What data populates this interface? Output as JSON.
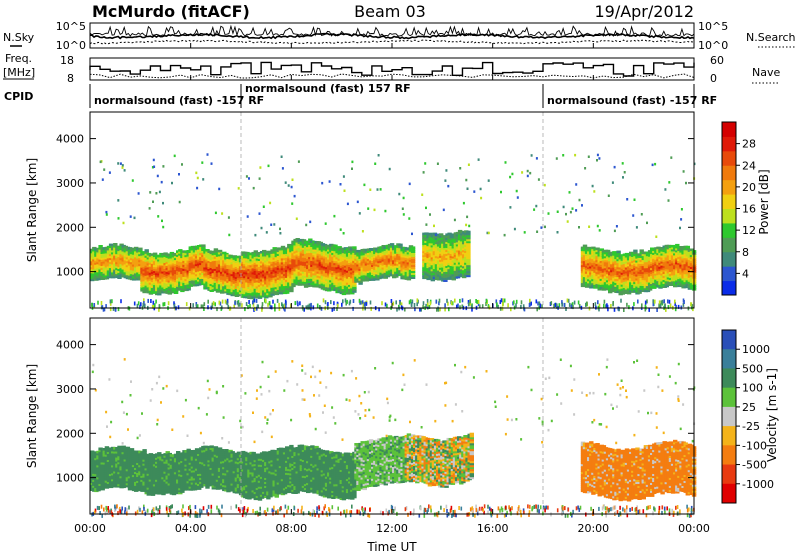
{
  "header": {
    "station": "McMurdo (fitACF)",
    "beam": "Beam 03",
    "date": "19/Apr/2012"
  },
  "noise_panel": {
    "left_label": "N.Sky",
    "right_label": "N.Search",
    "ticks_left": [
      "10^5",
      "10^0"
    ],
    "ticks_right": [
      "10^5",
      "10^0"
    ]
  },
  "freq_panel": {
    "label_line1": "Freq.",
    "label_line2": "[MHz]",
    "right_label": "Nave",
    "ticks_left": [
      "18",
      "8"
    ],
    "ticks_right": [
      "60",
      "0"
    ]
  },
  "cpid_panel": {
    "label": "CPID",
    "segments": [
      {
        "start_hour": 0,
        "end_hour": 6,
        "text": "normalsound (fast) -157 RF"
      },
      {
        "start_hour": 6,
        "end_hour": 18,
        "text": "normalsound (fast) 157 RF"
      },
      {
        "start_hour": 18,
        "end_hour": 24,
        "text": "normalsound (fast) -157 RF"
      }
    ]
  },
  "chart_data": [
    {
      "type": "heatmap",
      "quantity": "power",
      "ylabel": "Slant Range [km]",
      "yticks": [
        "1000",
        "2000",
        "3000",
        "4000"
      ],
      "ylim": [
        180,
        4600
      ],
      "xlim": [
        0,
        24
      ],
      "colorbar": {
        "label": "Power [dB]",
        "ticks": [
          "4",
          "8",
          "12",
          "16",
          "20",
          "24",
          "28"
        ],
        "range": [
          0,
          32
        ],
        "colors": [
          "#0a2ce8",
          "#2c56d0",
          "#3f8a7a",
          "#4f9c55",
          "#2ec82e",
          "#bde01e",
          "#f0d012",
          "#f4a010",
          "#f07a0c",
          "#e84a0a",
          "#e01a08",
          "#d40000"
        ]
      },
      "echo_bands": [
        {
          "start_hour": 0.0,
          "end_hour": 2.0,
          "range_low": 800,
          "range_high": 1500,
          "power": 22
        },
        {
          "start_hour": 2.0,
          "end_hour": 4.5,
          "range_low": 600,
          "range_high": 1500,
          "power": 26
        },
        {
          "start_hour": 4.5,
          "end_hour": 6.0,
          "range_low": 500,
          "range_high": 1400,
          "power": 27
        },
        {
          "start_hour": 6.0,
          "end_hour": 8.0,
          "range_low": 500,
          "range_high": 1500,
          "power": 27
        },
        {
          "start_hour": 8.0,
          "end_hour": 10.5,
          "range_low": 600,
          "range_high": 1600,
          "power": 26
        },
        {
          "start_hour": 10.5,
          "end_hour": 12.8,
          "range_low": 800,
          "range_high": 1500,
          "power": 24
        },
        {
          "start_hour": 13.2,
          "end_hour": 15.0,
          "range_low": 900,
          "range_high": 1900,
          "power": 20
        },
        {
          "start_hour": 19.5,
          "end_hour": 24.0,
          "range_low": 600,
          "range_high": 1500,
          "power": 25
        }
      ]
    },
    {
      "type": "heatmap",
      "quantity": "velocity",
      "xlabel": "Time UT",
      "ylabel": "Slant Range [km]",
      "yticks": [
        "1000",
        "2000",
        "3000",
        "4000"
      ],
      "xticks": [
        "00:00",
        "04:00",
        "08:00",
        "12:00",
        "16:00",
        "20:00",
        "00:00"
      ],
      "ylim": [
        180,
        4600
      ],
      "xlim": [
        0,
        24
      ],
      "colorbar": {
        "label": "Velocity [m s-1]",
        "ticks": [
          "1000",
          "500",
          "100",
          "25",
          "-25",
          "-100",
          "-500",
          "-1000"
        ],
        "colors": [
          "#2a4fb8",
          "#3a7f9a",
          "#3d8a5a",
          "#5cc23a",
          "#c8c8c8",
          "#f4b31a",
          "#f47d10",
          "#e83a10",
          "#e00000"
        ]
      },
      "echo_bands": [
        {
          "start_hour": 0.0,
          "end_hour": 6.0,
          "range_low": 700,
          "range_high": 1600,
          "velocity_class": "100..500"
        },
        {
          "start_hour": 6.0,
          "end_hour": 10.5,
          "range_low": 600,
          "range_high": 1600,
          "velocity_class": "100..500"
        },
        {
          "start_hour": 10.5,
          "end_hour": 12.5,
          "range_low": 800,
          "range_high": 1800,
          "velocity_class": "25..100"
        },
        {
          "start_hour": 12.5,
          "end_hour": 15.2,
          "range_low": 900,
          "range_high": 1900,
          "velocity_class": "mixed"
        },
        {
          "start_hour": 19.5,
          "end_hour": 24.0,
          "range_low": 600,
          "range_high": 1700,
          "velocity_class": "-100..-500"
        }
      ]
    }
  ]
}
